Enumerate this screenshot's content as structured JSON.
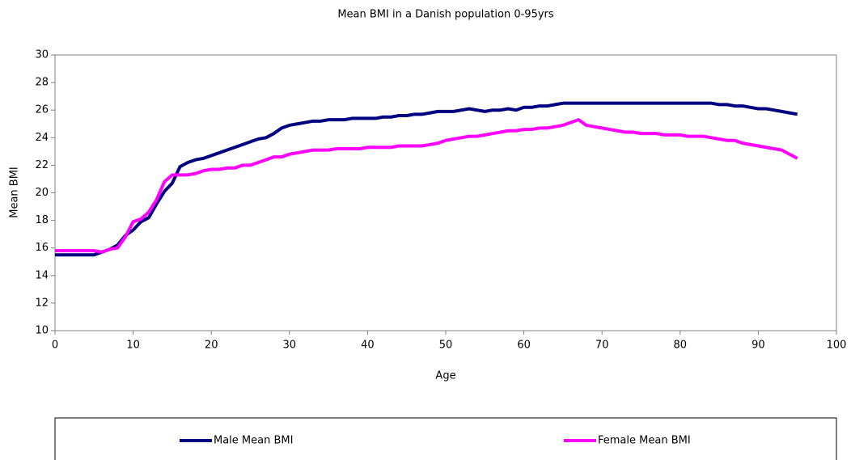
{
  "chart_data": {
    "type": "line",
    "title": "Mean BMI in a Danish population 0-95yrs",
    "x_label": "Age",
    "y_label": "Mean BMI",
    "x": [
      0,
      1,
      2,
      3,
      4,
      5,
      6,
      7,
      8,
      9,
      10,
      11,
      12,
      13,
      14,
      15,
      16,
      17,
      18,
      19,
      20,
      21,
      22,
      23,
      24,
      25,
      26,
      27,
      28,
      29,
      30,
      31,
      32,
      33,
      34,
      35,
      36,
      37,
      38,
      39,
      40,
      41,
      42,
      43,
      44,
      45,
      46,
      47,
      48,
      49,
      50,
      51,
      52,
      53,
      54,
      55,
      56,
      57,
      58,
      59,
      60,
      61,
      62,
      63,
      64,
      65,
      66,
      67,
      68,
      69,
      70,
      71,
      72,
      73,
      74,
      75,
      76,
      77,
      78,
      79,
      80,
      81,
      82,
      83,
      84,
      85,
      86,
      87,
      88,
      89,
      90,
      91,
      92,
      93,
      94,
      95
    ],
    "series": [
      {
        "name": "Male Mean BMI",
        "color": "#000080",
        "values": [
          15.5,
          15.5,
          15.5,
          15.5,
          15.5,
          15.5,
          15.7,
          15.9,
          16.2,
          16.9,
          17.3,
          17.9,
          18.2,
          19.2,
          20.1,
          20.7,
          21.9,
          22.2,
          22.4,
          22.5,
          22.7,
          22.9,
          23.1,
          23.3,
          23.5,
          23.7,
          23.9,
          24.0,
          24.3,
          24.7,
          24.9,
          25.0,
          25.1,
          25.2,
          25.2,
          25.3,
          25.3,
          25.3,
          25.4,
          25.4,
          25.4,
          25.4,
          25.5,
          25.5,
          25.6,
          25.6,
          25.7,
          25.7,
          25.8,
          25.9,
          25.9,
          25.9,
          26.0,
          26.1,
          26.0,
          25.9,
          26.0,
          26.0,
          26.1,
          26.0,
          26.2,
          26.2,
          26.3,
          26.3,
          26.4,
          26.5,
          26.5,
          26.5,
          26.5,
          26.5,
          26.5,
          26.5,
          26.5,
          26.5,
          26.5,
          26.5,
          26.5,
          26.5,
          26.5,
          26.5,
          26.5,
          26.5,
          26.5,
          26.5,
          26.5,
          26.4,
          26.4,
          26.3,
          26.3,
          26.2,
          26.1,
          26.1,
          26.0,
          25.9,
          25.8,
          25.7
        ]
      },
      {
        "name": "Female Mean BMI",
        "color": "#ff00ff",
        "values": [
          15.8,
          15.8,
          15.8,
          15.8,
          15.8,
          15.8,
          15.7,
          15.9,
          16.0,
          16.8,
          17.9,
          18.1,
          18.6,
          19.5,
          20.8,
          21.3,
          21.3,
          21.3,
          21.4,
          21.6,
          21.7,
          21.7,
          21.8,
          21.8,
          22.0,
          22.0,
          22.2,
          22.4,
          22.6,
          22.6,
          22.8,
          22.9,
          23.0,
          23.1,
          23.1,
          23.1,
          23.2,
          23.2,
          23.2,
          23.2,
          23.3,
          23.3,
          23.3,
          23.3,
          23.4,
          23.4,
          23.4,
          23.4,
          23.5,
          23.6,
          23.8,
          23.9,
          24.0,
          24.1,
          24.1,
          24.2,
          24.3,
          24.4,
          24.5,
          24.5,
          24.6,
          24.6,
          24.7,
          24.7,
          24.8,
          24.9,
          25.1,
          25.3,
          24.9,
          24.8,
          24.7,
          24.6,
          24.5,
          24.4,
          24.4,
          24.3,
          24.3,
          24.3,
          24.2,
          24.2,
          24.2,
          24.1,
          24.1,
          24.1,
          24.0,
          23.9,
          23.8,
          23.8,
          23.6,
          23.5,
          23.4,
          23.3,
          23.2,
          23.1,
          22.8,
          22.5
        ]
      }
    ],
    "xlim": [
      0,
      100
    ],
    "xticks": [
      0,
      10,
      20,
      30,
      40,
      50,
      60,
      70,
      80,
      90,
      100
    ],
    "ylim": [
      10,
      30
    ],
    "yticks": [
      10,
      12,
      14,
      16,
      18,
      20,
      22,
      24,
      26,
      28,
      30
    ],
    "grid": false,
    "legend": "bottom"
  }
}
